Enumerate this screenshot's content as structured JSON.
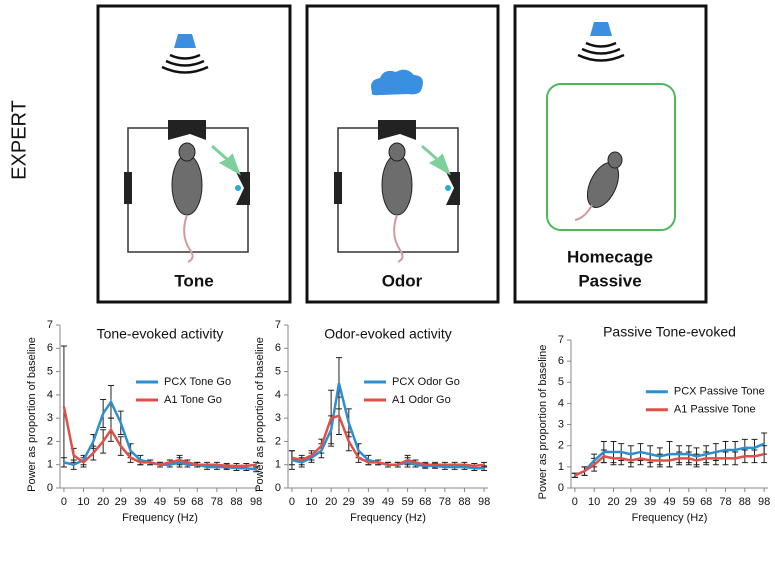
{
  "side_label": "EXPERT",
  "panels": [
    {
      "label_lines": [
        "Tone"
      ]
    },
    {
      "label_lines": [
        "Odor"
      ]
    },
    {
      "label_lines": [
        "Homecage",
        "Passive"
      ]
    }
  ],
  "chart_data": [
    {
      "type": "line",
      "title": "Tone-evoked activity",
      "x_label": "Frequency (Hz)",
      "y_label": "Power as proportion of baseline",
      "x": [
        0,
        5,
        10,
        15,
        20,
        24,
        29,
        34,
        39,
        44,
        49,
        54,
        59,
        63,
        68,
        73,
        78,
        83,
        88,
        93,
        98
      ],
      "xlim": [
        -2,
        100
      ],
      "xticks": [
        0,
        10,
        20,
        29,
        39,
        49,
        59,
        68,
        78,
        88,
        98
      ],
      "ylim": [
        0,
        7
      ],
      "yticks": [
        0,
        1,
        2,
        3,
        4,
        5,
        6,
        7
      ],
      "legend": "right",
      "series": [
        {
          "name": "PCX Tone Go",
          "color": "#2e8fcf",
          "values": [
            1.1,
            1.0,
            1.2,
            2.0,
            3.2,
            3.7,
            2.8,
            1.6,
            1.2,
            1.1,
            1.0,
            1.0,
            1.1,
            1.0,
            1.0,
            0.9,
            0.9,
            0.9,
            0.85,
            0.85,
            0.8
          ],
          "errors": [
            0.2,
            0.2,
            0.2,
            0.3,
            0.6,
            0.7,
            0.5,
            0.3,
            0.2,
            0.1,
            0.1,
            0.1,
            0.2,
            0.1,
            0.1,
            0.1,
            0.1,
            0.1,
            0.1,
            0.1,
            0.1
          ]
        },
        {
          "name": "A1 Tone Go",
          "color": "#e0504a",
          "values": [
            3.5,
            1.4,
            1.1,
            1.5,
            2.0,
            2.5,
            1.8,
            1.3,
            1.1,
            1.1,
            1.0,
            1.1,
            1.2,
            1.1,
            1.0,
            1.0,
            1.0,
            0.95,
            0.95,
            0.95,
            1.0
          ],
          "errors": [
            2.6,
            0.3,
            0.2,
            0.3,
            0.5,
            0.5,
            0.4,
            0.2,
            0.1,
            0.1,
            0.1,
            0.1,
            0.2,
            0.1,
            0.1,
            0.1,
            0.1,
            0.1,
            0.1,
            0.1,
            0.1
          ]
        }
      ]
    },
    {
      "type": "line",
      "title": "Odor-evoked activity",
      "x_label": "Frequency (Hz)",
      "y_label": "Power as proportion of baseline",
      "x": [
        0,
        5,
        10,
        15,
        20,
        24,
        29,
        34,
        39,
        44,
        49,
        54,
        59,
        63,
        68,
        73,
        78,
        83,
        88,
        93,
        98
      ],
      "xlim": [
        -2,
        100
      ],
      "xticks": [
        0,
        10,
        20,
        29,
        39,
        49,
        59,
        68,
        78,
        88,
        98
      ],
      "ylim": [
        0,
        7
      ],
      "yticks": [
        0,
        1,
        2,
        3,
        4,
        5,
        6,
        7
      ],
      "legend": "right",
      "series": [
        {
          "name": "PCX Odor Go",
          "color": "#2e8fcf",
          "values": [
            1.2,
            1.1,
            1.3,
            1.6,
            2.5,
            4.5,
            2.8,
            1.6,
            1.2,
            1.1,
            1.0,
            1.0,
            1.1,
            1.0,
            0.95,
            0.95,
            0.9,
            0.9,
            0.9,
            0.85,
            0.85
          ],
          "errors": [
            0.4,
            0.2,
            0.2,
            0.3,
            0.6,
            1.1,
            0.6,
            0.3,
            0.2,
            0.1,
            0.1,
            0.1,
            0.2,
            0.1,
            0.1,
            0.1,
            0.1,
            0.1,
            0.1,
            0.1,
            0.1
          ]
        },
        {
          "name": "A1 Odor Go",
          "color": "#e0504a",
          "values": [
            1.3,
            1.2,
            1.4,
            1.8,
            3.0,
            3.1,
            2.0,
            1.3,
            1.1,
            1.1,
            1.0,
            1.0,
            1.2,
            1.1,
            1.0,
            1.0,
            1.0,
            1.0,
            1.0,
            0.95,
            1.0
          ],
          "errors": [
            0.3,
            0.2,
            0.2,
            0.3,
            1.2,
            0.8,
            0.4,
            0.2,
            0.1,
            0.1,
            0.1,
            0.1,
            0.2,
            0.1,
            0.1,
            0.1,
            0.1,
            0.1,
            0.1,
            0.1,
            0.1
          ]
        }
      ]
    },
    {
      "type": "line",
      "title": "Passive Tone-evoked",
      "x_label": "Frequency (Hz)",
      "y_label": "Power as proportion of baseline",
      "x": [
        0,
        5,
        10,
        15,
        20,
        24,
        29,
        34,
        39,
        44,
        49,
        54,
        59,
        63,
        68,
        73,
        78,
        83,
        88,
        93,
        98
      ],
      "xlim": [
        -2,
        100
      ],
      "xticks": [
        0,
        10,
        20,
        29,
        39,
        49,
        59,
        68,
        78,
        88,
        98
      ],
      "ylim": [
        0,
        7
      ],
      "yticks": [
        0,
        1,
        2,
        3,
        4,
        5,
        6,
        7
      ],
      "legend": "right",
      "series": [
        {
          "name": "PCX Passive Tone",
          "color": "#2e8fcf",
          "values": [
            0.6,
            0.8,
            1.3,
            1.7,
            1.7,
            1.7,
            1.6,
            1.7,
            1.6,
            1.5,
            1.6,
            1.6,
            1.6,
            1.5,
            1.6,
            1.7,
            1.8,
            1.8,
            1.9,
            1.9,
            2.1
          ],
          "errors": [
            0.1,
            0.2,
            0.3,
            0.5,
            0.5,
            0.4,
            0.4,
            0.4,
            0.4,
            0.4,
            0.6,
            0.4,
            0.4,
            0.4,
            0.4,
            0.4,
            0.4,
            0.4,
            0.4,
            0.4,
            0.5
          ]
        },
        {
          "name": "A1 Passive Tone",
          "color": "#e0504a",
          "values": [
            0.6,
            0.8,
            1.1,
            1.5,
            1.4,
            1.4,
            1.3,
            1.4,
            1.3,
            1.3,
            1.3,
            1.4,
            1.4,
            1.3,
            1.4,
            1.4,
            1.4,
            1.4,
            1.5,
            1.5,
            1.6
          ],
          "errors": [
            0.1,
            0.2,
            0.3,
            0.3,
            0.3,
            0.3,
            0.3,
            0.3,
            0.3,
            0.3,
            0.3,
            0.3,
            0.3,
            0.3,
            0.3,
            0.3,
            0.3,
            0.3,
            0.3,
            0.3,
            0.4
          ]
        }
      ]
    }
  ]
}
